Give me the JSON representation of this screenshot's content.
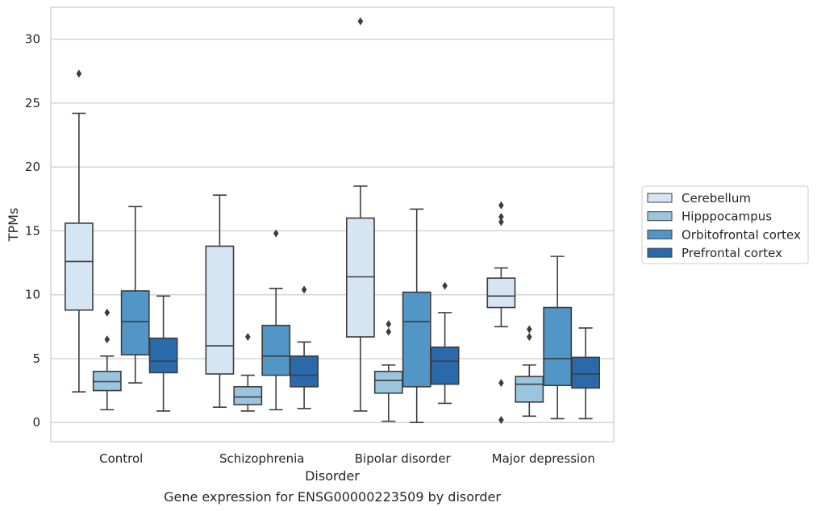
{
  "chart_data": {
    "type": "box",
    "xlabel": "Disorder",
    "ylabel": "TPMs",
    "caption": "Gene expression for ENSG00000223509 by disorder",
    "ylim": [
      -1.5,
      32.5
    ],
    "yticks": [
      0,
      5,
      10,
      15,
      20,
      25,
      30
    ],
    "grid": "horizontal",
    "legend_position": "right",
    "categories": [
      "Control",
      "Schizophrenia",
      "Bipolar disorder",
      "Major depression"
    ],
    "series": [
      {
        "name": "Cerebellum",
        "color": "#d6e5f3",
        "boxes": [
          {
            "whislo": 2.4,
            "q1": 8.8,
            "med": 12.6,
            "q3": 15.6,
            "whishi": 24.2,
            "fliers": [
              27.3
            ]
          },
          {
            "whislo": 1.2,
            "q1": 3.8,
            "med": 6.0,
            "q3": 13.8,
            "whishi": 17.8,
            "fliers": []
          },
          {
            "whislo": 0.9,
            "q1": 6.7,
            "med": 11.4,
            "q3": 16.0,
            "whishi": 18.5,
            "fliers": [
              31.4
            ]
          },
          {
            "whislo": 7.5,
            "q1": 9.0,
            "med": 9.9,
            "q3": 11.3,
            "whishi": 12.1,
            "fliers": [
              17.0,
              16.1,
              15.7,
              3.1,
              0.2
            ]
          }
        ]
      },
      {
        "name": "Hipppocampus",
        "color": "#9ac5df",
        "boxes": [
          {
            "whislo": 1.0,
            "q1": 2.5,
            "med": 3.2,
            "q3": 4.0,
            "whishi": 5.2,
            "fliers": [
              8.6,
              6.5
            ]
          },
          {
            "whislo": 0.9,
            "q1": 1.4,
            "med": 2.0,
            "q3": 2.8,
            "whishi": 3.7,
            "fliers": [
              6.7
            ]
          },
          {
            "whislo": 0.1,
            "q1": 2.3,
            "med": 3.3,
            "q3": 4.0,
            "whishi": 4.5,
            "fliers": [
              7.7,
              7.1
            ]
          },
          {
            "whislo": 0.5,
            "q1": 1.6,
            "med": 3.0,
            "q3": 3.6,
            "whishi": 4.5,
            "fliers": [
              7.3,
              6.7
            ]
          }
        ]
      },
      {
        "name": "Orbitofrontal cortex",
        "color": "#5296c7",
        "boxes": [
          {
            "whislo": 3.1,
            "q1": 5.3,
            "med": 7.9,
            "q3": 10.3,
            "whishi": 16.9,
            "fliers": []
          },
          {
            "whislo": 1.0,
            "q1": 3.7,
            "med": 5.2,
            "q3": 7.6,
            "whishi": 10.5,
            "fliers": [
              14.8
            ]
          },
          {
            "whislo": 0.0,
            "q1": 2.8,
            "med": 7.9,
            "q3": 10.2,
            "whishi": 16.7,
            "fliers": []
          },
          {
            "whislo": 0.3,
            "q1": 2.9,
            "med": 5.0,
            "q3": 9.0,
            "whishi": 13.0,
            "fliers": []
          }
        ]
      },
      {
        "name": "Prefrontal cortex",
        "color": "#2a6aab",
        "boxes": [
          {
            "whislo": 0.9,
            "q1": 3.9,
            "med": 4.8,
            "q3": 6.6,
            "whishi": 9.9,
            "fliers": []
          },
          {
            "whislo": 1.1,
            "q1": 2.8,
            "med": 3.7,
            "q3": 5.2,
            "whishi": 6.3,
            "fliers": [
              10.4
            ]
          },
          {
            "whislo": 1.5,
            "q1": 3.0,
            "med": 4.8,
            "q3": 5.9,
            "whishi": 8.6,
            "fliers": [
              10.7
            ]
          },
          {
            "whislo": 0.3,
            "q1": 2.7,
            "med": 3.8,
            "q3": 5.1,
            "whishi": 7.4,
            "fliers": []
          }
        ]
      }
    ]
  }
}
